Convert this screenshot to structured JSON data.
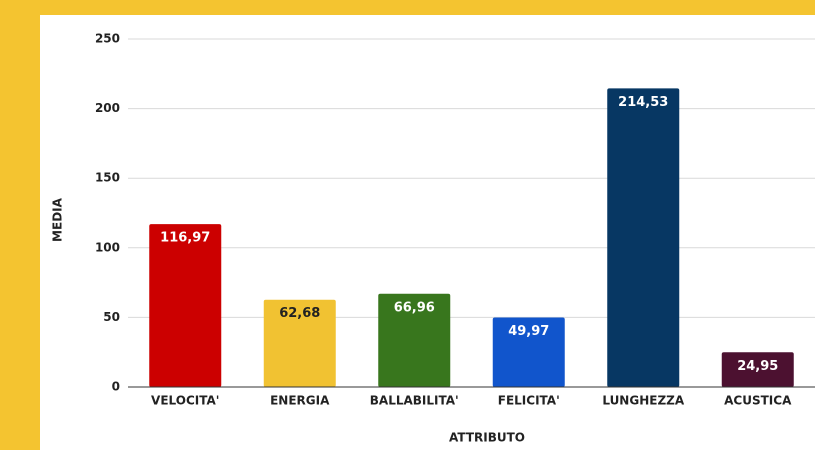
{
  "chart_data": {
    "type": "bar",
    "categories": [
      "VELOCITA'",
      "ENERGIA",
      "BALLABILITA'",
      "FELICITA'",
      "LUNGHEZZA",
      "ACUSTICA"
    ],
    "values": [
      116.97,
      62.68,
      66.96,
      49.97,
      214.53,
      24.95
    ],
    "value_labels": [
      "116,97",
      "62,68",
      "66,96",
      "49,97",
      "214,53",
      "24,95"
    ],
    "colors": [
      "#cc0000",
      "#f1c232",
      "#38761d",
      "#1155cc",
      "#073763",
      "#4c1130"
    ],
    "xlabel": "ATTRIBUTO",
    "ylabel": "MEDIA",
    "ylim": [
      0,
      250
    ],
    "yticks": [
      0,
      50,
      100,
      150,
      200,
      250
    ],
    "grid": true
  }
}
